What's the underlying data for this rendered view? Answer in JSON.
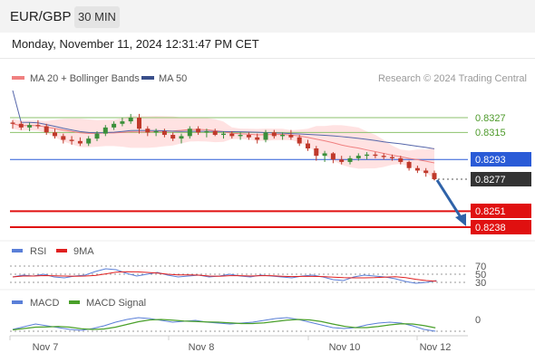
{
  "header": {
    "pair": "EUR/GBP",
    "timeframe": "30 MIN"
  },
  "datetime": "Monday, November 11, 2024 12:31:47 PM CET",
  "legend": {
    "ma20": "MA 20 + Bollinger Bands",
    "ma50": "MA 50",
    "copyright": "Research © 2024 Trading Central"
  },
  "colors": {
    "up": "#3a8f3a",
    "down": "#c0392b",
    "ma20": "#f08080",
    "band": "#ffd6d6",
    "ma50": "#5566aa",
    "pivot": "#2a5bd7",
    "resistance": "#8cc26c",
    "support": "#e01010",
    "current_bg": "#333333",
    "arrow": "#2f62a8",
    "rsi": "#5a7fd8",
    "rsi_ma": "#e02020",
    "macd": "#5a7fd8",
    "macd_signal": "#4aa02a"
  },
  "levels": [
    {
      "value": "0.8327",
      "kind": "resistance"
    },
    {
      "value": "0.8315",
      "kind": "resistance"
    },
    {
      "value": "0.8293",
      "kind": "pivot"
    },
    {
      "value": "0.8277",
      "kind": "current"
    },
    {
      "value": "0.8251",
      "kind": "support"
    },
    {
      "value": "0.8238",
      "kind": "support"
    }
  ],
  "rsi": {
    "label": "RSI",
    "ma_label": "9MA",
    "levels": [
      "70",
      "50",
      "30"
    ]
  },
  "macd": {
    "label": "MACD",
    "signal_label": "MACD Signal",
    "zero": "0"
  },
  "x_axis": [
    "Nov 7",
    "Nov 8",
    "Nov 10",
    "Nov 12"
  ],
  "chart_data": {
    "type": "candlestick",
    "y_axis_labels": [
      "0.8327",
      "0.8315",
      "0.8293",
      "0.8277",
      "0.8251",
      "0.8238"
    ],
    "ohlc_approx": [
      [
        0.8323,
        0.8325,
        0.8318,
        0.8322
      ],
      [
        0.8322,
        0.8324,
        0.8317,
        0.8319
      ],
      [
        0.8319,
        0.8323,
        0.8316,
        0.8321
      ],
      [
        0.8321,
        0.8325,
        0.8318,
        0.832
      ],
      [
        0.832,
        0.8322,
        0.8313,
        0.8315
      ],
      [
        0.8315,
        0.8318,
        0.831,
        0.8312
      ],
      [
        0.8312,
        0.8314,
        0.8306,
        0.8309
      ],
      [
        0.8309,
        0.8312,
        0.8305,
        0.8308
      ],
      [
        0.8308,
        0.8311,
        0.8304,
        0.8306
      ],
      [
        0.8306,
        0.8312,
        0.8304,
        0.831
      ],
      [
        0.831,
        0.8316,
        0.8308,
        0.8314
      ],
      [
        0.8314,
        0.8321,
        0.8312,
        0.8319
      ],
      [
        0.8319,
        0.8324,
        0.8317,
        0.8322
      ],
      [
        0.8322,
        0.8327,
        0.832,
        0.8324
      ],
      [
        0.8324,
        0.833,
        0.8322,
        0.8327
      ],
      [
        0.8327,
        0.833,
        0.8314,
        0.8318
      ],
      [
        0.8318,
        0.832,
        0.8312,
        0.8315
      ],
      [
        0.8315,
        0.8318,
        0.8312,
        0.8316
      ],
      [
        0.8316,
        0.8318,
        0.8311,
        0.8313
      ],
      [
        0.8313,
        0.8315,
        0.8308,
        0.831
      ],
      [
        0.831,
        0.8314,
        0.8306,
        0.8312
      ],
      [
        0.8312,
        0.832,
        0.831,
        0.8318
      ],
      [
        0.8318,
        0.832,
        0.8313,
        0.8315
      ],
      [
        0.8315,
        0.8318,
        0.8311,
        0.8316
      ],
      [
        0.8316,
        0.8318,
        0.8312,
        0.8313
      ],
      [
        0.8313,
        0.8316,
        0.831,
        0.8314
      ],
      [
        0.8314,
        0.8316,
        0.831,
        0.8312
      ],
      [
        0.8312,
        0.8315,
        0.8309,
        0.8313
      ],
      [
        0.8313,
        0.8315,
        0.8309,
        0.8311
      ],
      [
        0.8311,
        0.8314,
        0.8306,
        0.8309
      ],
      [
        0.8309,
        0.8317,
        0.8307,
        0.8315
      ],
      [
        0.8315,
        0.8317,
        0.831,
        0.8312
      ],
      [
        0.8312,
        0.8315,
        0.8309,
        0.8313
      ],
      [
        0.8313,
        0.8317,
        0.8309,
        0.8311
      ],
      [
        0.8311,
        0.8313,
        0.8304,
        0.8306
      ],
      [
        0.8306,
        0.8309,
        0.83,
        0.8302
      ],
      [
        0.8302,
        0.8304,
        0.8292,
        0.8296
      ],
      [
        0.8296,
        0.83,
        0.8291,
        0.8298
      ],
      [
        0.8298,
        0.8299,
        0.829,
        0.8293
      ],
      [
        0.8293,
        0.8296,
        0.8289,
        0.8291
      ],
      [
        0.8291,
        0.8296,
        0.8289,
        0.8294
      ],
      [
        0.8294,
        0.8298,
        0.8292,
        0.8296
      ],
      [
        0.8296,
        0.8299,
        0.8293,
        0.8297
      ],
      [
        0.8297,
        0.8299,
        0.8294,
        0.8296
      ],
      [
        0.8296,
        0.8298,
        0.8293,
        0.8295
      ],
      [
        0.8295,
        0.8297,
        0.8292,
        0.8294
      ],
      [
        0.8294,
        0.8296,
        0.8289,
        0.8291
      ],
      [
        0.8291,
        0.8292,
        0.8284,
        0.8286
      ],
      [
        0.8286,
        0.8288,
        0.8282,
        0.8284
      ],
      [
        0.8284,
        0.8286,
        0.8279,
        0.8282
      ],
      [
        0.8282,
        0.8284,
        0.8276,
        0.8277
      ]
    ],
    "projection": {
      "from": "0.8277",
      "to": "0.8238",
      "direction": "down"
    }
  }
}
